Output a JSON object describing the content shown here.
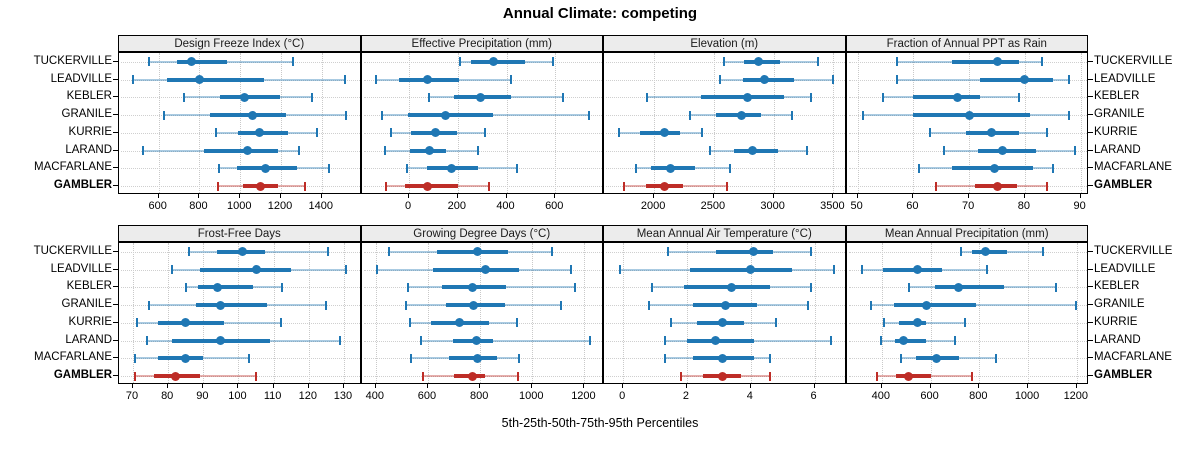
{
  "title": "Annual Climate: competing",
  "xlabel": "5th-25th-50th-75th-95th Percentiles",
  "colors": {
    "blue": "#1f77b4",
    "blue_light": "rgba(31,119,180,0.38)",
    "red": "#be2d27",
    "red_light": "rgba(190,45,39,0.38)",
    "strip_bg": "#ececec",
    "grid": "#c9c9c9",
    "border": "#000000"
  },
  "chart_data": {
    "type": "dotplot-intervals",
    "layout": "2 rows x 4 cols",
    "percentiles": [
      5,
      25,
      50,
      75,
      95
    ],
    "categories": [
      "TUCKERVILLE",
      "LEADVILLE",
      "KEBLER",
      "GRANILE",
      "KURRIE",
      "LARAND",
      "MACFARLANE",
      "GAMBLER"
    ],
    "highlight": "GAMBLER",
    "panels": [
      {
        "title": "Design Freeze Index (°C)",
        "xlim": [
          405,
          1595
        ],
        "ticks": [
          600,
          800,
          1000,
          1200,
          1400
        ],
        "values": [
          [
            550,
            690,
            760,
            935,
            1260
          ],
          [
            475,
            640,
            800,
            1115,
            1515
          ],
          [
            725,
            900,
            1020,
            1195,
            1350
          ],
          [
            625,
            850,
            1060,
            1225,
            1520
          ],
          [
            880,
            990,
            1095,
            1235,
            1375
          ],
          [
            525,
            820,
            1035,
            1185,
            1290
          ],
          [
            895,
            985,
            1125,
            1280,
            1435
          ],
          [
            890,
            1015,
            1100,
            1185,
            1320
          ]
        ]
      },
      {
        "title": "Effective Precipitation (mm)",
        "xlim": [
          -195,
          800
        ],
        "ticks": [
          0,
          200,
          400,
          600
        ],
        "values": [
          [
            210,
            255,
            345,
            475,
            590
          ],
          [
            -135,
            -40,
            75,
            205,
            420
          ],
          [
            80,
            185,
            295,
            420,
            630
          ],
          [
            -110,
            -5,
            150,
            345,
            740
          ],
          [
            -75,
            10,
            110,
            195,
            310
          ],
          [
            -100,
            5,
            85,
            150,
            285
          ],
          [
            -10,
            75,
            175,
            285,
            445
          ],
          [
            -95,
            -15,
            75,
            200,
            330
          ]
        ]
      },
      {
        "title": "Elevation (m)",
        "xlim": [
          1580,
          3610
        ],
        "ticks": [
          2000,
          2500,
          3000,
          3500
        ],
        "values": [
          [
            2585,
            2755,
            2875,
            3055,
            3375
          ],
          [
            2555,
            2740,
            2920,
            3170,
            3500
          ],
          [
            1940,
            2390,
            2785,
            3085,
            3315
          ],
          [
            2300,
            2515,
            2735,
            2895,
            3155
          ],
          [
            1705,
            1885,
            2085,
            2215,
            2400
          ],
          [
            2470,
            2665,
            2825,
            3035,
            3280
          ],
          [
            1845,
            1970,
            2140,
            2345,
            2635
          ],
          [
            1745,
            1930,
            2090,
            2240,
            2610
          ]
        ]
      },
      {
        "title": "Fraction of Annual PPT as Rain",
        "xlim": [
          48,
          91.5
        ],
        "ticks": [
          50,
          60,
          70,
          80,
          90
        ],
        "values": [
          [
            57,
            67,
            75,
            79,
            83
          ],
          [
            57,
            72,
            80,
            85,
            88
          ],
          [
            54.5,
            60,
            68,
            72,
            79
          ],
          [
            51,
            60,
            70,
            81,
            88
          ],
          [
            63,
            69.5,
            74,
            79,
            84
          ],
          [
            65.5,
            71.5,
            76,
            82,
            89
          ],
          [
            61,
            67,
            74.5,
            81.5,
            85
          ],
          [
            64,
            71,
            75,
            78.5,
            84
          ]
        ]
      },
      {
        "title": "Frost-Free Days",
        "xlim": [
          66,
          135
        ],
        "ticks": [
          70,
          80,
          90,
          100,
          110,
          120,
          130
        ],
        "values": [
          [
            86,
            94,
            101,
            107.5,
            125.5
          ],
          [
            81,
            89,
            105,
            115,
            130.5
          ],
          [
            85,
            88.5,
            94,
            104,
            112.5
          ],
          [
            74.5,
            88,
            95,
            108,
            125
          ],
          [
            71,
            77,
            85,
            96,
            112
          ],
          [
            74,
            81,
            95,
            109,
            129
          ],
          [
            70.5,
            77,
            85,
            90,
            103
          ],
          [
            70.5,
            76,
            82,
            89,
            105
          ]
        ]
      },
      {
        "title": "Growing Degree Days (°C)",
        "xlim": [
          345,
          1275
        ],
        "ticks": [
          400,
          600,
          800,
          1000,
          1200
        ],
        "values": [
          [
            450,
            635,
            790,
            905,
            1075
          ],
          [
            405,
            620,
            820,
            950,
            1150
          ],
          [
            525,
            655,
            770,
            900,
            1165
          ],
          [
            515,
            670,
            775,
            895,
            1110
          ],
          [
            530,
            610,
            720,
            835,
            940
          ],
          [
            575,
            695,
            785,
            850,
            1220
          ],
          [
            535,
            680,
            790,
            865,
            950
          ],
          [
            580,
            700,
            770,
            820,
            945
          ]
        ]
      },
      {
        "title": "Mean Annual Air Temperature (°C)",
        "xlim": [
          -0.6,
          7.0
        ],
        "ticks": [
          0,
          2,
          4,
          6
        ],
        "values": [
          [
            1.4,
            2.9,
            4.1,
            4.7,
            5.9
          ],
          [
            -0.1,
            2.1,
            4.0,
            5.3,
            6.6
          ],
          [
            0.9,
            1.9,
            3.4,
            4.6,
            5.9
          ],
          [
            0.8,
            2.2,
            3.2,
            4.2,
            5.8
          ],
          [
            1.5,
            2.3,
            3.1,
            3.8,
            4.8
          ],
          [
            1.3,
            2.0,
            2.9,
            4.1,
            6.5
          ],
          [
            1.3,
            2.2,
            3.1,
            4.1,
            4.6
          ],
          [
            1.8,
            2.5,
            3.1,
            3.7,
            4.6
          ]
        ]
      },
      {
        "title": "Mean Annual Precipitation (mm)",
        "xlim": [
          255,
          1250
        ],
        "ticks": [
          400,
          600,
          800,
          1000,
          1200
        ],
        "values": [
          [
            725,
            770,
            825,
            915,
            1060
          ],
          [
            320,
            405,
            545,
            645,
            830
          ],
          [
            510,
            620,
            715,
            900,
            1115
          ],
          [
            355,
            450,
            585,
            785,
            1195
          ],
          [
            410,
            470,
            545,
            580,
            740
          ],
          [
            395,
            455,
            490,
            580,
            700
          ],
          [
            480,
            540,
            625,
            715,
            870
          ],
          [
            380,
            460,
            510,
            600,
            770
          ]
        ]
      }
    ]
  }
}
